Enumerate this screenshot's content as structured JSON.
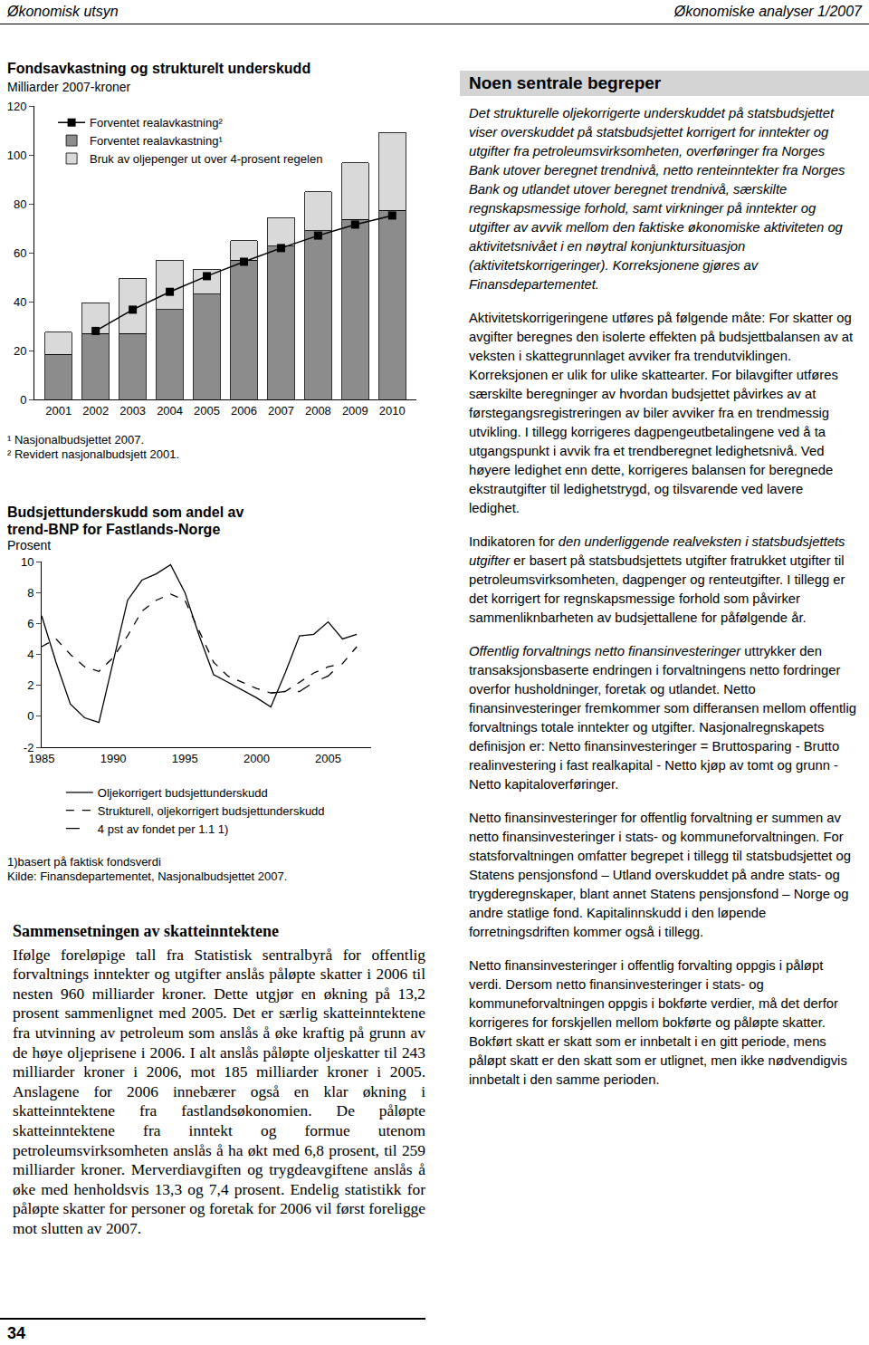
{
  "header": {
    "left": "Økonomisk utsyn",
    "right": "Økonomiske analyser 1/2007"
  },
  "chart_data": [
    {
      "type": "bar",
      "title": [
        "Fondsavkastning og strukturelt underskudd"
      ],
      "subtitle": "Milliarder 2007-kroner",
      "stacked": true,
      "categories": [
        "2001",
        "2002",
        "2003",
        "2004",
        "2005",
        "2006",
        "2007",
        "2008",
        "2009",
        "2010"
      ],
      "series": [
        {
          "name": "Forventet realavkastning¹",
          "type": "bar",
          "color": "#8c8c8c",
          "values": [
            18.5,
            27,
            27,
            36.7,
            43,
            57,
            62.6,
            68.9,
            73.7,
            77.4
          ]
        },
        {
          "name": "Bruk av oljepenger ut over 4-prosent regelen",
          "type": "bar",
          "color": "#d9d9d9",
          "values": [
            9,
            12.5,
            22.5,
            20.3,
            10.3,
            8,
            11.8,
            16,
            23,
            31.8
          ]
        },
        {
          "name": "Forventet realavkastning²",
          "type": "line",
          "color": "#000000",
          "marker": "square",
          "line_style": "solid",
          "values": [
            null,
            28,
            36.7,
            44,
            50.4,
            56.3,
            61.9,
            67,
            71.5,
            75.2
          ]
        }
      ],
      "ylim": [
        0,
        120
      ],
      "yticks": [
        0,
        20,
        40,
        60,
        80,
        100,
        120
      ],
      "grid": false,
      "legend": "top left",
      "notes": [
        "¹ Nasjonalbudsjettet 2007.",
        "² Revidert nasjonalbudsjett 2001."
      ]
    },
    {
      "type": "line",
      "title": [
        "Budsjettunderskudd som andel av",
        "trend-BNP for Fastlands-Norge"
      ],
      "subtitle": "Prosent",
      "x": [
        1985,
        1986,
        1987,
        1988,
        1989,
        1990,
        1991,
        1992,
        1993,
        1994,
        1995,
        1996,
        1997,
        1998,
        1999,
        2000,
        2001,
        2002,
        2003,
        2004,
        2005,
        2006,
        2007
      ],
      "series": [
        {
          "name": "Oljekorrigert budsjettunderskudd",
          "color": "#000000",
          "line_style": "solid",
          "values": [
            6.5,
            3.5,
            0.8,
            -0.1,
            -0.4,
            3.5,
            7.5,
            8.8,
            9.2,
            9.8,
            8.0,
            5.2,
            2.7,
            2.2,
            1.7,
            1.2,
            0.6,
            2.8,
            5.2,
            5.3,
            6.1,
            5.0,
            5.3
          ]
        },
        {
          "name": "Strukturell, oljekorrigert budsjettunderskudd",
          "color": "#000000",
          "line_style": "dash",
          "values": [
            4.5,
            5.0,
            4.0,
            3.2,
            2.9,
            3.8,
            5.2,
            6.8,
            7.5,
            7.9,
            7.5,
            5.5,
            3.5,
            2.6,
            2.2,
            1.8,
            1.5,
            1.6,
            2.2,
            2.8,
            3.2,
            3.4,
            4.5
          ]
        },
        {
          "name": "4 pst av fondet per 1.1 1)",
          "color": "#000000",
          "line_style": "longdash",
          "values": [
            null,
            null,
            null,
            null,
            null,
            null,
            null,
            null,
            null,
            null,
            null,
            null,
            null,
            null,
            null,
            null,
            1.5,
            1.6,
            1.6,
            2.2,
            2.6,
            3.5,
            null
          ]
        }
      ],
      "xlim": [
        1985,
        2008
      ],
      "xticks": [
        1985,
        1990,
        1995,
        2000,
        2005
      ],
      "ylim": [
        -2,
        10
      ],
      "yticks": [
        -2,
        0,
        2,
        4,
        6,
        8,
        10
      ],
      "grid": false,
      "legend": "bottom",
      "notes": [
        "1)basert på faktisk fondsverdi",
        "Kilde: Finansdepartementet, Nasjonalbudsjettet 2007."
      ]
    }
  ],
  "article": {
    "heading": "Sammensetningen av skatteinntektene",
    "paragraphs": [
      "Ifølge foreløpige tall fra Statistisk sentralbyrå for offentlig forvaltnings inntekter og utgifter anslås påløpte skatter i 2006 til nesten 960 milliarder kroner. Dette utgjør en økning på 13,2 prosent sammenlignet med 2005. Det er særlig skatteinntektene fra utvinning av petroleum som anslås å øke kraftig på grunn av de høye oljeprisene i 2006. I alt anslås påløpte oljeskatter til 243 milliarder kroner i 2006, mot 185 milliarder kroner i 2005. Anslagene for 2006 innebærer også en klar økning i skatteinntektene fra fastlandsøkonomien. De påløpte skatteinntektene fra inntekt og formue utenom petroleumsvirksomheten anslås å ha økt med 6,8 prosent, til 259 milliarder kroner. Merverdiavgiften og trygdeavgiftene anslås å øke med henholdsvis 13,3 og 7,4 prosent. Endelig statistikk for påløpte skatter for personer og foretak for 2006 vil først foreligge mot slutten av 2007."
    ]
  },
  "sidebar": {
    "heading": "Noen sentrale begreper",
    "paragraphs": [
      [
        {
          "text": "Det strukturelle oljekorrigerte underskuddet på statsbudsjettet",
          "italic": true
        },
        {
          "text": " viser overskuddet på statsbudsjettet korrigert for inntekter og utgifter fra petroleumsvirksomheten, overføringer fra Norges Bank utover beregnet trendnivå, netto renteinntekter fra Norges Bank og utlandet utover beregnet trendnivå, særskilte regnskapsmessige forhold, samt virkninger på inntekter og utgifter av avvik mellom den faktiske økonomiske aktiviteten og aktivitetsnivået i en nøytral konjunktursituasjon (aktivitetskorrigeringer). Korreksjonene gjøres av Finansdepartementet.",
          "italic": true
        }
      ],
      [
        {
          "text": "Aktivitetskorrigeringene utføres på følgende måte: For skatter og avgifter beregnes den isolerte effekten på budsjettbalansen av at veksten i skattegrunnlaget avviker fra trendutviklingen. Korreksjonen er ulik for ulike skattearter. For bilavgifter utføres særskilte beregninger av hvordan budsjettet påvirkes av at førstegangsregistreringen av biler avviker fra en trendmessig utvikling. I tillegg korrigeres dagpengeutbetalingene ved å ta utgangspunkt i avvik fra et trendberegnet ledighetsnivå. Ved høyere ledighet enn dette, korrigeres balansen for beregnede ekstrautgifter til ledighetstrygd, og tilsvarende ved lavere ledighet.",
          "italic": false
        }
      ],
      [
        {
          "text": "Indikatoren for ",
          "italic": false
        },
        {
          "text": "den underliggende realveksten i statsbudsjettets utgifter",
          "italic": true
        },
        {
          "text": " er basert på statsbudsjettets utgifter fratrukket utgifter til petroleumsvirksomheten, dagpenger og renteutgifter. I tillegg er det korrigert for regnskapsmessige forhold som påvirker sammenliknbarheten av budsjettallene for påfølgende år.",
          "italic": false
        }
      ],
      [
        {
          "text": "Offentlig forvaltnings netto finansinvesteringer",
          "italic": true
        },
        {
          "text": " uttrykker den transaksjonsbaserte endringen i forvaltningens netto fordringer overfor husholdninger, foretak og utlandet. Netto finansinvesteringer fremkommer som differansen mellom offentlig forvaltnings totale inntekter og utgifter. Nasjonalregnskapets definisjon er: Netto finansinvesteringer = Bruttosparing - Brutto realinvestering i fast realkapital - Netto kjøp av tomt og grunn - Netto kapitaloverføringer.",
          "italic": false
        }
      ],
      [
        {
          "text": "Netto finansinvesteringer for offentlig forvaltning er summen av netto finansinvesteringer i stats- og kommuneforvaltningen. For statsforvaltningen omfatter begrepet i tillegg til statsbudsjettet og Statens pensjonsfond – Utland overskuddet på andre stats- og trygderegnskaper, blant annet Statens pensjonsfond – Norge og andre statlige fond. Kapitalinnskudd i den løpende forretningsdriften kommer også i tillegg.",
          "italic": false
        }
      ],
      [
        {
          "text": "Netto finansinvesteringer i offentlig forvalting oppgis i påløpt verdi. Dersom netto finansinvesteringer i stats- og kommuneforvaltningen oppgis i bokførte verdier, må det derfor korrigeres for forskjellen mellom bokførte og påløpte skatter. Bokført skatt er skatt som er innbetalt i en gitt periode, mens påløpt skatt er den skatt som er utlignet, men ikke nødvendigvis innbetalt i den samme perioden.",
          "italic": false
        }
      ]
    ]
  },
  "page_number": "34"
}
